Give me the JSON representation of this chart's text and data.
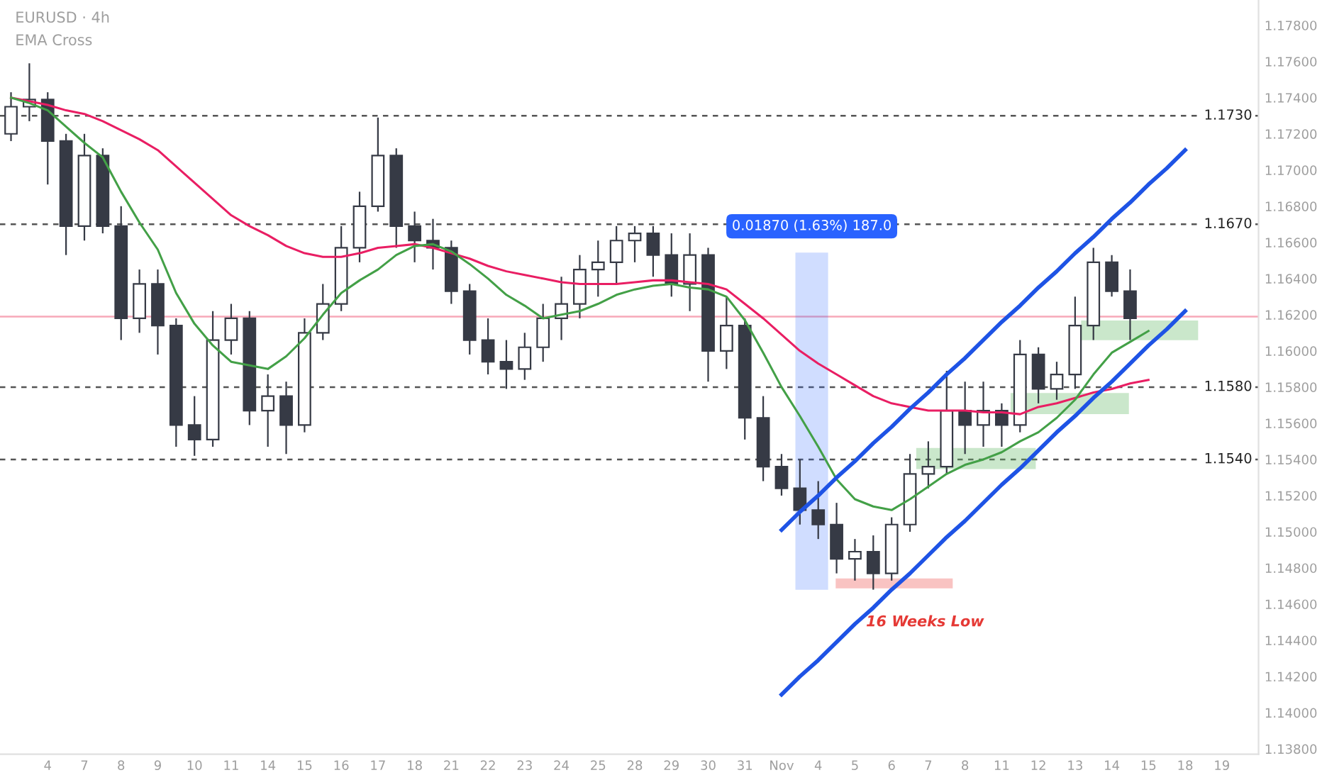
{
  "chart_data": {
    "type": "candlestick",
    "title": "EURUSD · 4h",
    "subtitle": "EMA Cross",
    "categories": [
      null,
      null,
      "4",
      null,
      "7",
      null,
      "8",
      null,
      "9",
      null,
      "10",
      null,
      "11",
      null,
      "14",
      null,
      "15",
      null,
      "16",
      null,
      "17",
      null,
      "18",
      null,
      "21",
      null,
      "22",
      null,
      "23",
      null,
      "24",
      null,
      "25",
      null,
      "28",
      null,
      "29",
      null,
      "30",
      null,
      "31",
      null,
      "Nov",
      null,
      "4",
      null,
      "5",
      null,
      "6",
      null,
      "7",
      null,
      "8",
      null,
      "11",
      null,
      "12",
      null,
      "13",
      null,
      "14",
      null,
      "15",
      null,
      "18",
      null,
      "19"
    ],
    "ohlc": [
      [
        1.172,
        1.1743,
        1.1716,
        1.1735
      ],
      [
        1.1735,
        1.1759,
        1.1727,
        1.1739
      ],
      [
        1.1739,
        1.1743,
        1.1692,
        1.1716
      ],
      [
        1.1716,
        1.172,
        1.1653,
        1.1669
      ],
      [
        1.1669,
        1.172,
        1.1661,
        1.1708
      ],
      [
        1.1708,
        1.1712,
        1.1665,
        1.1669
      ],
      [
        1.1669,
        1.168,
        1.1606,
        1.1618
      ],
      [
        1.1618,
        1.1645,
        1.161,
        1.1637
      ],
      [
        1.1637,
        1.1645,
        1.1598,
        1.1614
      ],
      [
        1.1614,
        1.1618,
        1.1547,
        1.1559
      ],
      [
        1.1559,
        1.1575,
        1.1542,
        1.1551
      ],
      [
        1.1551,
        1.1622,
        1.1547,
        1.1606
      ],
      [
        1.1606,
        1.1626,
        1.1598,
        1.1618
      ],
      [
        1.1618,
        1.1622,
        1.1559,
        1.1567
      ],
      [
        1.1567,
        1.1587,
        1.1547,
        1.1575
      ],
      [
        1.1575,
        1.1583,
        1.1543,
        1.1559
      ],
      [
        1.1559,
        1.1618,
        1.1555,
        1.161
      ],
      [
        1.161,
        1.1637,
        1.1606,
        1.1626
      ],
      [
        1.1626,
        1.1669,
        1.1622,
        1.1657
      ],
      [
        1.1657,
        1.1688,
        1.1649,
        1.168
      ],
      [
        1.168,
        1.1729,
        1.1677,
        1.1708
      ],
      [
        1.1708,
        1.1712,
        1.1657,
        1.1669
      ],
      [
        1.1669,
        1.1677,
        1.1649,
        1.1661
      ],
      [
        1.1661,
        1.1673,
        1.1645,
        1.1657
      ],
      [
        1.1657,
        1.1661,
        1.1626,
        1.1633
      ],
      [
        1.1633,
        1.1637,
        1.1598,
        1.1606
      ],
      [
        1.1606,
        1.1618,
        1.1587,
        1.1594
      ],
      [
        1.1594,
        1.1606,
        1.1579,
        1.159
      ],
      [
        1.159,
        1.161,
        1.1584,
        1.1602
      ],
      [
        1.1602,
        1.1626,
        1.1594,
        1.1618
      ],
      [
        1.1618,
        1.1641,
        1.1606,
        1.1626
      ],
      [
        1.1626,
        1.1653,
        1.1618,
        1.1645
      ],
      [
        1.1645,
        1.1661,
        1.163,
        1.1649
      ],
      [
        1.1649,
        1.1669,
        1.1637,
        1.1661
      ],
      [
        1.1661,
        1.1669,
        1.1649,
        1.1665
      ],
      [
        1.1665,
        1.1669,
        1.1641,
        1.1653
      ],
      [
        1.1653,
        1.1665,
        1.163,
        1.1637
      ],
      [
        1.1637,
        1.1665,
        1.1622,
        1.1653
      ],
      [
        1.1653,
        1.1657,
        1.1583,
        1.16
      ],
      [
        1.16,
        1.163,
        1.159,
        1.1614
      ],
      [
        1.1614,
        1.1618,
        1.1551,
        1.1563
      ],
      [
        1.1563,
        1.1575,
        1.1528,
        1.1536
      ],
      [
        1.1536,
        1.1543,
        1.152,
        1.1524
      ],
      [
        1.1524,
        1.154,
        1.1504,
        1.1512
      ],
      [
        1.1512,
        1.1528,
        1.1496,
        1.1504
      ],
      [
        1.1504,
        1.1516,
        1.1477,
        1.1485
      ],
      [
        1.1485,
        1.1496,
        1.1473,
        1.1489
      ],
      [
        1.1489,
        1.1498,
        1.1468,
        1.1477
      ],
      [
        1.1477,
        1.1508,
        1.1473,
        1.1504
      ],
      [
        1.1504,
        1.1543,
        1.15,
        1.1532
      ],
      [
        1.1532,
        1.155,
        1.1524,
        1.1536
      ],
      [
        1.1536,
        1.1589,
        1.1532,
        1.1567
      ],
      [
        1.1567,
        1.1583,
        1.1543,
        1.1559
      ],
      [
        1.1559,
        1.1583,
        1.1547,
        1.1567
      ],
      [
        1.1567,
        1.1571,
        1.1547,
        1.1559
      ],
      [
        1.1559,
        1.1606,
        1.1555,
        1.1598
      ],
      [
        1.1598,
        1.1602,
        1.1571,
        1.1579
      ],
      [
        1.1579,
        1.1594,
        1.1573,
        1.1587
      ],
      [
        1.1587,
        1.163,
        1.1579,
        1.1614
      ],
      [
        1.1614,
        1.1657,
        1.1606,
        1.1649
      ],
      [
        1.1649,
        1.1653,
        1.163,
        1.1633
      ],
      [
        1.1633,
        1.1645,
        1.1606,
        1.1618
      ],
      null,
      null,
      null,
      null,
      null
    ],
    "color": "#363a45",
    "series": [
      {
        "type": "line",
        "color": "#e91e63",
        "values": [
          1.174,
          1.1738,
          1.1736,
          1.1733,
          1.1731,
          1.1727,
          1.1722,
          1.1717,
          1.1711,
          1.1702,
          1.1693,
          1.1684,
          1.1675,
          1.1669,
          1.1664,
          1.1658,
          1.1654,
          1.1652,
          1.1652,
          1.1654,
          1.1657,
          1.1658,
          1.1659,
          1.1657,
          1.1654,
          1.1651,
          1.1647,
          1.1644,
          1.1642,
          1.164,
          1.1638,
          1.1637,
          1.1637,
          1.1637,
          1.1638,
          1.1639,
          1.1639,
          1.1638,
          1.1637,
          1.1634,
          1.1626,
          1.1618,
          1.1609,
          1.16,
          1.1593,
          1.1587,
          1.1581,
          1.1575,
          1.1571,
          1.1569,
          1.1567,
          1.1567,
          1.1567,
          1.1566,
          1.1566,
          1.1565,
          1.1569,
          1.1571,
          1.1574,
          1.1577,
          1.1579,
          1.1582,
          1.1584,
          null,
          null,
          null,
          null
        ]
      },
      {
        "type": "line",
        "color": "#43a047",
        "values": [
          1.174,
          1.1737,
          1.1733,
          1.1724,
          1.1715,
          1.1707,
          1.1688,
          1.1671,
          1.1656,
          1.1632,
          1.1615,
          1.1603,
          1.1594,
          1.1592,
          1.159,
          1.1597,
          1.1607,
          1.162,
          1.1632,
          1.1639,
          1.1645,
          1.1653,
          1.1658,
          1.1659,
          1.1655,
          1.1648,
          1.164,
          1.1631,
          1.1625,
          1.1618,
          1.162,
          1.1622,
          1.1626,
          1.1631,
          1.1634,
          1.1636,
          1.1637,
          1.1635,
          1.1634,
          1.163,
          1.1617,
          1.1599,
          1.158,
          1.1564,
          1.1547,
          1.1529,
          1.1518,
          1.1514,
          1.1512,
          1.1518,
          1.1525,
          1.1532,
          1.1537,
          1.154,
          1.1544,
          1.155,
          1.1555,
          1.1563,
          1.1573,
          1.1587,
          1.1599,
          1.1605,
          1.1611,
          null,
          null,
          null,
          null
        ]
      },
      {
        "type": "line",
        "color": "#1e53e5",
        "values": [
          null,
          null,
          null,
          null,
          null,
          null,
          null,
          null,
          null,
          null,
          null,
          null,
          null,
          null,
          null,
          null,
          null,
          null,
          null,
          null,
          null,
          null,
          null,
          null,
          null,
          null,
          null,
          null,
          null,
          null,
          null,
          null,
          null,
          null,
          null,
          null,
          null,
          null,
          null,
          null,
          null,
          null,
          1.1501,
          1.1511,
          1.152,
          1.153,
          1.1539,
          1.1549,
          1.1558,
          1.1568,
          1.1577,
          1.1587,
          1.1596,
          1.1606,
          1.1616,
          1.1625,
          1.1635,
          1.1644,
          1.1654,
          1.1663,
          1.1673,
          1.1682,
          1.1692,
          1.1701,
          1.1711,
          null,
          null
        ]
      },
      {
        "type": "line",
        "color": "#1e53e5",
        "values": [
          null,
          null,
          null,
          null,
          null,
          null,
          null,
          null,
          null,
          null,
          null,
          null,
          null,
          null,
          null,
          null,
          null,
          null,
          null,
          null,
          null,
          null,
          null,
          null,
          null,
          null,
          null,
          null,
          null,
          null,
          null,
          null,
          null,
          null,
          null,
          null,
          null,
          null,
          null,
          null,
          null,
          null,
          1.141,
          1.142,
          1.1429,
          1.1439,
          1.1449,
          1.1458,
          1.1468,
          1.1477,
          1.1487,
          1.1497,
          1.1506,
          1.1516,
          1.1526,
          1.1535,
          1.1545,
          1.1555,
          1.1564,
          1.1574,
          1.1583,
          1.1593,
          1.1603,
          1.1612,
          1.1622,
          null,
          null
        ]
      }
    ],
    "ref_lines": [
      {
        "axis": "y",
        "value": 1.173,
        "label": "1.1730",
        "color": "#555555",
        "line_style": "dashed"
      },
      {
        "axis": "y",
        "value": 1.167,
        "label": "1.1670",
        "color": "#555555",
        "line_style": "dashed"
      },
      {
        "axis": "y",
        "value": 1.158,
        "label": "1.1580",
        "color": "#555555",
        "line_style": "dashed"
      },
      {
        "axis": "y",
        "value": 1.154,
        "label": "1.1540",
        "color": "#555555",
        "line_style": "dashed"
      },
      {
        "axis": "y",
        "value": 1.1619,
        "label": null,
        "color": "#f7a8b8",
        "line_style": "solid"
      }
    ],
    "annotations": [
      "0.01870 (1.63%) 187.0",
      "16 Weeks Low"
    ],
    "ylim": [
      1.1377,
      1.1794
    ],
    "yticks": [
      {
        "value": 1.138,
        "label": "1.13800"
      },
      {
        "value": 1.14,
        "label": "1.14000"
      },
      {
        "value": 1.142,
        "label": "1.14200"
      },
      {
        "value": 1.144,
        "label": "1.14400"
      },
      {
        "value": 1.146,
        "label": "1.14600"
      },
      {
        "value": 1.148,
        "label": "1.14800"
      },
      {
        "value": 1.15,
        "label": "1.15000"
      },
      {
        "value": 1.152,
        "label": "1.15200"
      },
      {
        "value": 1.154,
        "label": "1.15400"
      },
      {
        "value": 1.156,
        "label": "1.15600"
      },
      {
        "value": 1.158,
        "label": "1.15800"
      },
      {
        "value": 1.16,
        "label": "1.16000"
      },
      {
        "value": 1.162,
        "label": "1.16200"
      },
      {
        "value": 1.164,
        "label": "1.16400"
      },
      {
        "value": 1.166,
        "label": "1.16600"
      },
      {
        "value": 1.168,
        "label": "1.16800"
      },
      {
        "value": 1.17,
        "label": "1.17000"
      },
      {
        "value": 1.172,
        "label": "1.17200"
      },
      {
        "value": 1.174,
        "label": "1.17400"
      },
      {
        "value": 1.176,
        "label": "1.17600"
      },
      {
        "value": 1.178,
        "label": "1.17800"
      }
    ],
    "grid": false,
    "legend": false
  }
}
